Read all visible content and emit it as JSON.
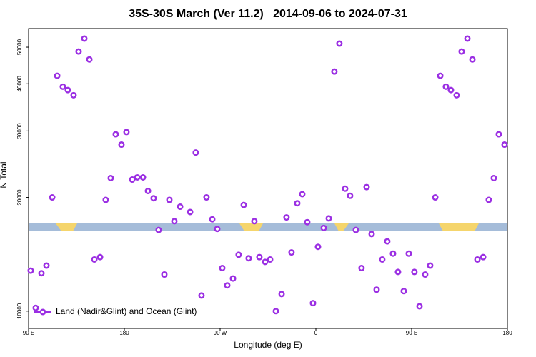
{
  "chart_data": {
    "type": "scatter",
    "title": "35S-30S March (Ver 11.2)   2014-09-06 to 2024-07-31",
    "x_label": "Longitude (deg E)",
    "y_label": "N Total",
    "log_y": true,
    "legend": "lower left",
    "xlim": [
      90,
      540
    ],
    "ylim": [
      9000,
      56000
    ],
    "xticks": [
      {
        "value": 90,
        "label": "90 E"
      },
      {
        "value": 180,
        "label": "180"
      },
      {
        "value": 270,
        "label": "90 W"
      },
      {
        "value": 360,
        "label": "0"
      },
      {
        "value": 450,
        "label": "90 E"
      },
      {
        "value": 540,
        "label": "180"
      }
    ],
    "yticks": [
      10000,
      20000,
      30000,
      40000,
      50000
    ],
    "x": [
      92.0,
      96.7,
      102.1,
      106.8,
      112.2,
      116.9,
      122.2,
      126.9,
      132.3,
      137.0,
      142.4,
      147.1,
      151.8,
      157.2,
      162.5,
      167.2,
      171.9,
      177.3,
      182.0,
      187.4,
      192.1,
      197.5,
      202.2,
      207.5,
      212.2,
      217.6,
      222.3,
      227.0,
      232.4,
      241.8,
      247.1,
      252.5,
      257.2,
      262.6,
      267.3,
      272.0,
      276.7,
      282.1,
      287.4,
      292.2,
      296.8,
      302.2,
      306.9,
      312.3,
      317.0,
      322.4,
      327.8,
      332.4,
      337.1,
      342.5,
      347.2,
      351.9,
      357.3,
      362.0,
      367.4,
      372.1,
      377.4,
      382.1,
      387.5,
      392.2,
      397.6,
      402.9,
      407.7,
      412.4,
      417.1,
      422.4,
      427.1,
      432.5,
      437.2,
      442.6,
      447.3,
      452.6,
      457.4,
      462.7,
      467.4,
      472.2,
      476.9,
      482.2,
      486.9,
      492.3,
      497.0,
      502.4,
      507.1,
      511.8,
      517.2,
      522.5,
      527.2,
      531.9,
      537.3
    ],
    "series": [
      {
        "name": "Land (Nadir&Glint) and Ocean (Glint)",
        "color": "#9b2fe3",
        "values": [
          12800,
          10200,
          12600,
          13200,
          20000,
          42000,
          39300,
          38500,
          37300,
          48700,
          52700,
          46400,
          13700,
          13900,
          19700,
          22500,
          29400,
          27600,
          29800,
          22300,
          22600,
          22600,
          20800,
          19900,
          16400,
          12500,
          19700,
          17300,
          18900,
          18300,
          26300,
          11000,
          20000,
          17500,
          16500,
          13000,
          11700,
          12200,
          14100,
          19100,
          13800,
          17300,
          13900,
          13500,
          13700,
          10000,
          11100,
          17700,
          14300,
          19300,
          20400,
          17200,
          10500,
          14800,
          16600,
          17600,
          43100,
          51100,
          21100,
          20200,
          16400,
          13000,
          21300,
          16000,
          11400,
          13700,
          15300,
          14200,
          12700,
          11300,
          14200,
          12700,
          10300,
          12500,
          13200,
          20000,
          42000,
          39300,
          38500,
          37300,
          48700,
          52700,
          46400,
          13700,
          13900,
          19700,
          22500,
          29400,
          27600
        ]
      }
    ]
  }
}
